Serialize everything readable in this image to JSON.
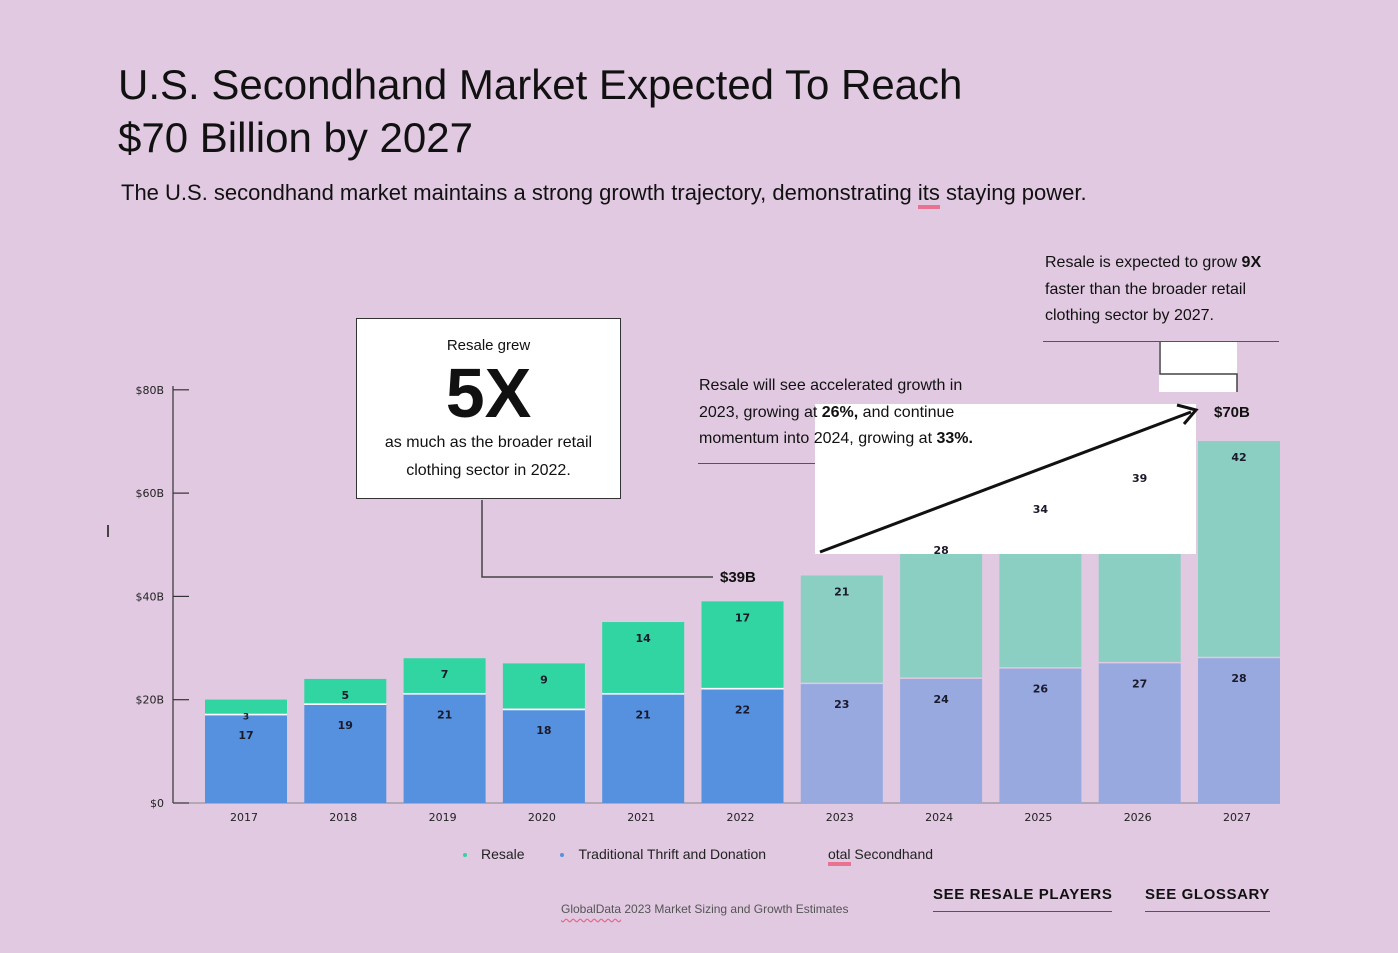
{
  "header": {
    "title_line1": "U.S. Secondhand Market Expected To Reach",
    "title_line2": "$70 Billion by 2027",
    "subtitle_pre": "The U.S. secondhand market maintains a strong growth trajectory, demonstrating ",
    "subtitle_mark": "its",
    "subtitle_post": " staying power."
  },
  "callouts": {
    "resale_5x_lead": "Resale grew",
    "resale_5x_big": "5X",
    "resale_5x_tail_1": "as much as the  broader retail",
    "resale_5x_tail_2": "clothing sector in 2022.",
    "accel_1": "Resale will see accelerated growth in",
    "accel_2_pre": "2023, growing at ",
    "accel_2_bold": "26%,",
    "accel_2_post": " and continue",
    "accel_3_pre": "momentum into 2024, growing at ",
    "accel_3_bold": "33%.",
    "nine_1_pre": "Resale is expected to grow ",
    "nine_1_bold": "9X",
    "nine_2": "faster than the broader retail",
    "nine_3": "clothing sector  by 2027.",
    "label_39b": "$39B",
    "label_70b": "$70B"
  },
  "legend": {
    "resale": "Resale",
    "thrift": "Traditional Thrift and Donation",
    "total_mark": "otal",
    "total_rest": " Secondhand"
  },
  "links": {
    "players": "SEE RESALE PLAYERS",
    "glossary": "SEE GLOSSARY"
  },
  "source": {
    "mark": "GlobalData",
    "rest": " 2023 Market Sizing and Growth Estimates"
  },
  "colors": {
    "background": "#e0c9e1",
    "resale_actual": "#30d5a2",
    "resale_forecast": "#8acfc2",
    "thrift_actual": "#5591df",
    "thrift_forecast": "#98a9e0",
    "axis": "#333333"
  },
  "chart_data": {
    "type": "bar",
    "stacked": true,
    "categories": [
      "2017",
      "2018",
      "2019",
      "2020",
      "2021",
      "2022",
      "2023",
      "2024",
      "2025",
      "2026",
      "2027"
    ],
    "series": [
      {
        "name": "Traditional Thrift and Donation",
        "values": [
          17,
          19,
          21,
          18,
          21,
          22,
          23,
          24,
          26,
          27,
          28
        ]
      },
      {
        "name": "Resale",
        "values": [
          3,
          5,
          7,
          9,
          14,
          17,
          21,
          28,
          34,
          39,
          42
        ]
      }
    ],
    "forecast_from": "2023",
    "y_ticks": [
      "$0",
      "$20B",
      "$40B",
      "$60B",
      "$80B"
    ],
    "ylim": [
      0,
      80
    ],
    "grid": false,
    "legend_position": "bottom-center"
  }
}
